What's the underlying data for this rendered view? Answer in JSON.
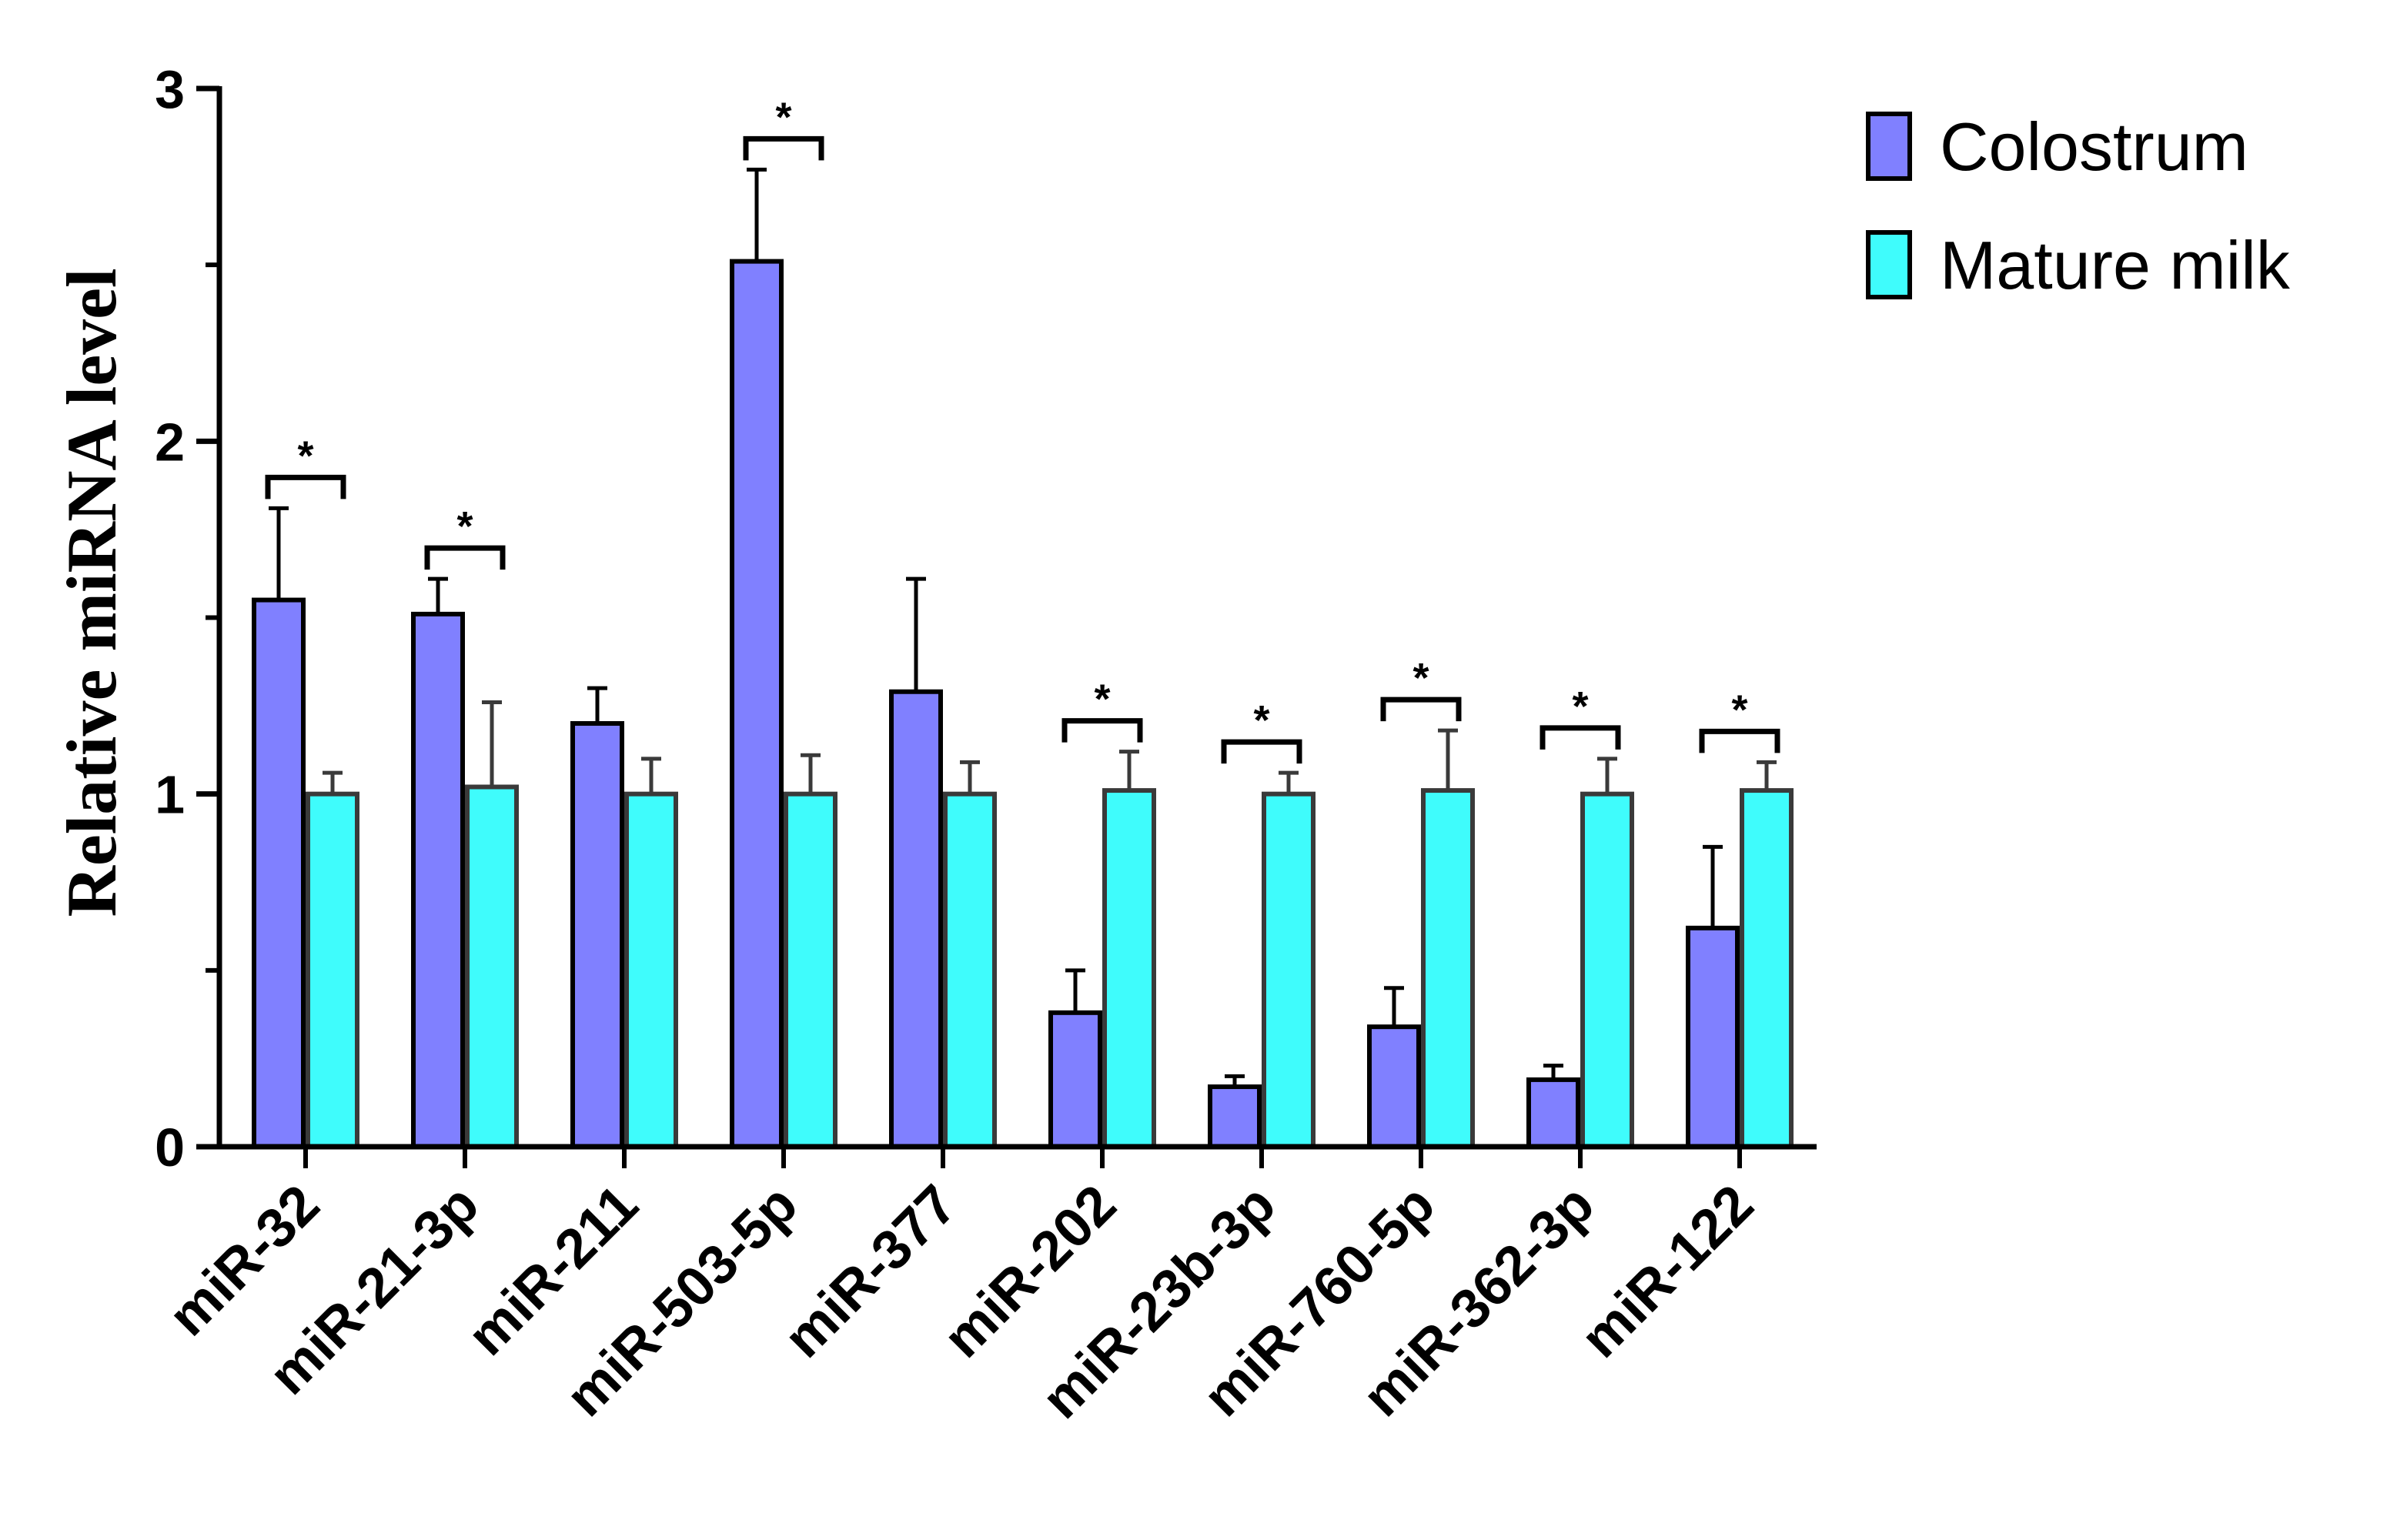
{
  "chart_data": {
    "type": "bar",
    "title": "",
    "xlabel": "",
    "ylabel": "Relative miRNA level",
    "ylim": [
      0,
      3
    ],
    "yticks": [
      0,
      1,
      2,
      3
    ],
    "grid": false,
    "legend_position": "top-right",
    "significance_marker": "*",
    "categories": [
      "miR-32",
      "miR-21-3p",
      "miR-211",
      "miR-503-5p",
      "miR-377",
      "miR-202",
      "miR-23b-3p",
      "miR-760-5p",
      "miR-362-3p",
      "miR-122"
    ],
    "series": [
      {
        "name": "Colostrum",
        "color": "#8080ff",
        "values": [
          1.55,
          1.51,
          1.2,
          2.51,
          1.29,
          0.38,
          0.17,
          0.34,
          0.19,
          0.62
        ],
        "errors": [
          0.26,
          0.1,
          0.1,
          0.26,
          0.32,
          0.12,
          0.03,
          0.11,
          0.04,
          0.23
        ]
      },
      {
        "name": "Mature milk",
        "color": "#3ffcfc",
        "values": [
          1.0,
          1.02,
          1.0,
          1.0,
          1.0,
          1.01,
          1.0,
          1.01,
          1.0,
          1.01
        ],
        "errors": [
          0.06,
          0.24,
          0.1,
          0.11,
          0.09,
          0.11,
          0.06,
          0.17,
          0.1,
          0.08
        ]
      }
    ],
    "significant": [
      true,
      true,
      false,
      true,
      false,
      true,
      true,
      true,
      true,
      true
    ]
  }
}
